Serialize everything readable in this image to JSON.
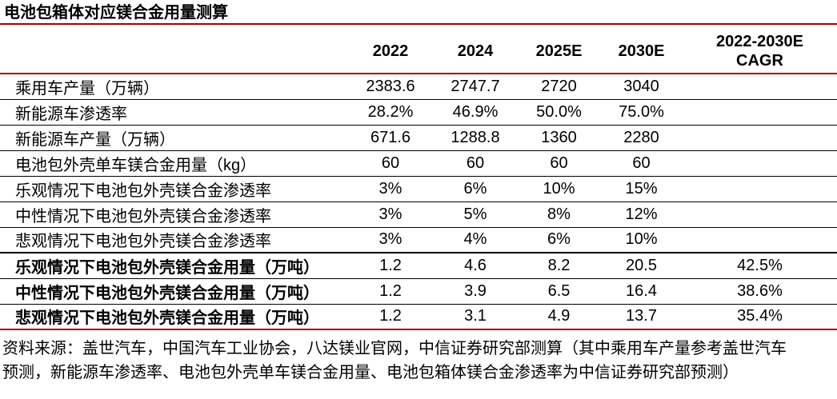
{
  "title": "电池包箱体对应镁合金用量测算",
  "colors": {
    "accent_red": "#aa0000",
    "text": "#000000",
    "row_line": "#000000"
  },
  "table": {
    "header": {
      "year_cols": [
        "2022",
        "2024",
        "2025E",
        "2030E"
      ],
      "cagr_col": {
        "line1": "2022-2030E",
        "line2": "CAGR"
      }
    },
    "rows": [
      {
        "label": "乘用车产量（万辆）",
        "values": [
          "2383.6",
          "2747.7",
          "2720",
          "3040",
          ""
        ],
        "bold": false
      },
      {
        "label": "新能源车渗透率",
        "values": [
          "28.2%",
          "46.9%",
          "50.0%",
          "75.0%",
          ""
        ],
        "bold": false
      },
      {
        "label": "新能源车产量（万辆）",
        "values": [
          "671.6",
          "1288.8",
          "1360",
          "2280",
          ""
        ],
        "bold": false
      },
      {
        "label": "电池包外壳单车镁合金用量（kg）",
        "values": [
          "60",
          "60",
          "60",
          "60",
          ""
        ],
        "bold": false
      },
      {
        "label": "乐观情况下电池包外壳镁合金渗透率",
        "values": [
          "3%",
          "6%",
          "10%",
          "15%",
          ""
        ],
        "bold": false
      },
      {
        "label": "中性情况下电池包外壳镁合金渗透率",
        "values": [
          "3%",
          "5%",
          "8%",
          "12%",
          ""
        ],
        "bold": false
      },
      {
        "label": "悲观情况下电池包外壳镁合金渗透率",
        "values": [
          "3%",
          "4%",
          "6%",
          "10%",
          ""
        ],
        "bold": false
      },
      {
        "label": "乐观情况下电池包外壳镁合金用量（万吨）",
        "values": [
          "1.2",
          "4.6",
          "8.2",
          "20.5",
          "42.5%"
        ],
        "bold": true
      },
      {
        "label": "中性情况下电池包外壳镁合金用量（万吨）",
        "values": [
          "1.2",
          "3.9",
          "6.5",
          "16.4",
          "38.6%"
        ],
        "bold": true
      },
      {
        "label": "悲观情况下电池包外壳镁合金用量（万吨）",
        "values": [
          "1.2",
          "3.1",
          "4.9",
          "13.7",
          "35.4%"
        ],
        "bold": true
      }
    ]
  },
  "source": {
    "line1": "资料来源：盖世汽车，中国汽车工业协会，八达镁业官网，中信证券研究部测算（其中乘用车产量参考盖世汽车",
    "line2": "预测，新能源车渗透率、电池包外壳单车镁合金用量、电池包箱体镁合金渗透率为中信证券研究部预测）"
  }
}
